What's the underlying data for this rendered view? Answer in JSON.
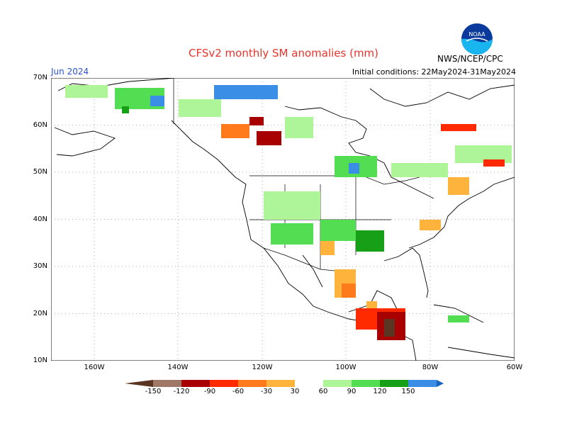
{
  "header": {
    "title": "CFSv2 monthly SM anomalies (mm)",
    "month": "Jun 2024",
    "initial_conditions": "Initial conditions: 22May2024-31May2024",
    "org": "NWS/NCEP/CPC",
    "logo_text": "NOAA"
  },
  "axes": {
    "lat_labels": [
      "70N",
      "60N",
      "50N",
      "40N",
      "30N",
      "20N",
      "10N"
    ],
    "lon_labels": [
      "160W",
      "140W",
      "120W",
      "100W",
      "80W",
      "60W"
    ]
  },
  "colorbar": {
    "labels": [
      "-150",
      "-120",
      "-90",
      "-60",
      "-30",
      "30",
      "60",
      "90",
      "120",
      "150"
    ],
    "colors": [
      "#5a3522",
      "#a07868",
      "#a80000",
      "#ff2a00",
      "#ff7a1a",
      "#fdb33c",
      "#ffffff",
      "#aef59a",
      "#52dd52",
      "#17a017",
      "#3a8ee6",
      "#1565c0"
    ]
  }
}
